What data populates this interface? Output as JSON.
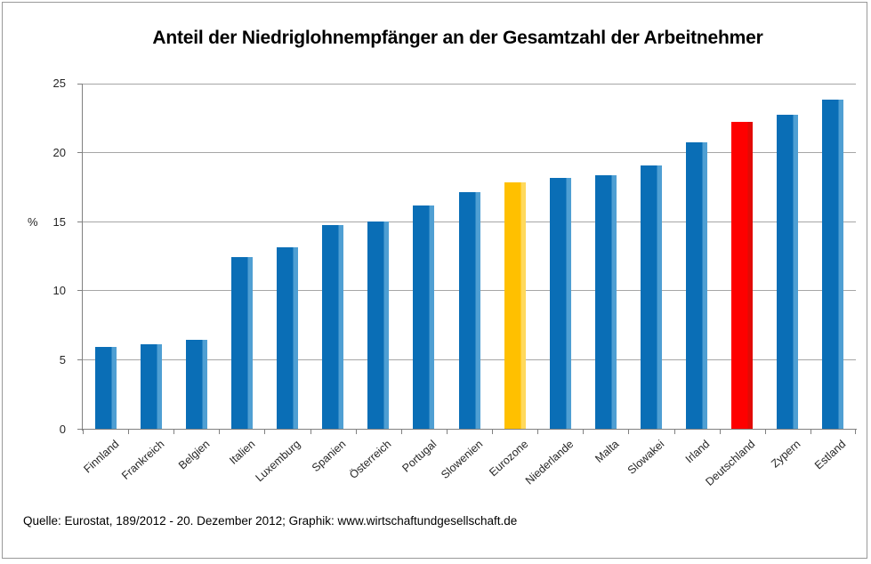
{
  "chart_data": {
    "type": "bar",
    "title": "Anteil der Niedriglohnempfänger an der Gesamtzahl der Arbeitnehmer",
    "ylabel": "%",
    "xlabel": "",
    "ylim": [
      0,
      25
    ],
    "yticks": [
      0,
      5,
      10,
      15,
      20,
      25
    ],
    "grid": true,
    "legend": "none",
    "categories": [
      "Finnland",
      "Frankreich",
      "Belgien",
      "Italien",
      "Luxemburg",
      "Spanien",
      "Österreich",
      "Portugal",
      "Slowenien",
      "Eurozone",
      "Niederlande",
      "Malta",
      "Slowakei",
      "Irland",
      "Deutschland",
      "Zypern",
      "Estland"
    ],
    "values": [
      5.9,
      6.1,
      6.4,
      12.4,
      13.1,
      14.7,
      15.0,
      16.1,
      17.1,
      17.8,
      18.1,
      18.3,
      19.0,
      20.7,
      22.2,
      22.7,
      23.8
    ],
    "bar_color_keys": [
      "blue",
      "blue",
      "blue",
      "blue",
      "blue",
      "blue",
      "blue",
      "blue",
      "blue",
      "gold",
      "blue",
      "blue",
      "blue",
      "blue",
      "red",
      "blue",
      "blue"
    ],
    "palette": {
      "blue": {
        "main": "#0a6eb6",
        "edge": "#4f9fd3"
      },
      "gold": {
        "main": "#ffc000",
        "edge": "#ffd95c"
      },
      "red": {
        "main": "#fe0000",
        "edge": "#e20a04"
      }
    },
    "axis_color": "#808080",
    "grid_color": "#a6a6a6",
    "source": "Quelle: Eurostat,  189/2012  - 20. Dezember 2012; Graphik: www.wirtschaftundgesellschaft.de"
  }
}
